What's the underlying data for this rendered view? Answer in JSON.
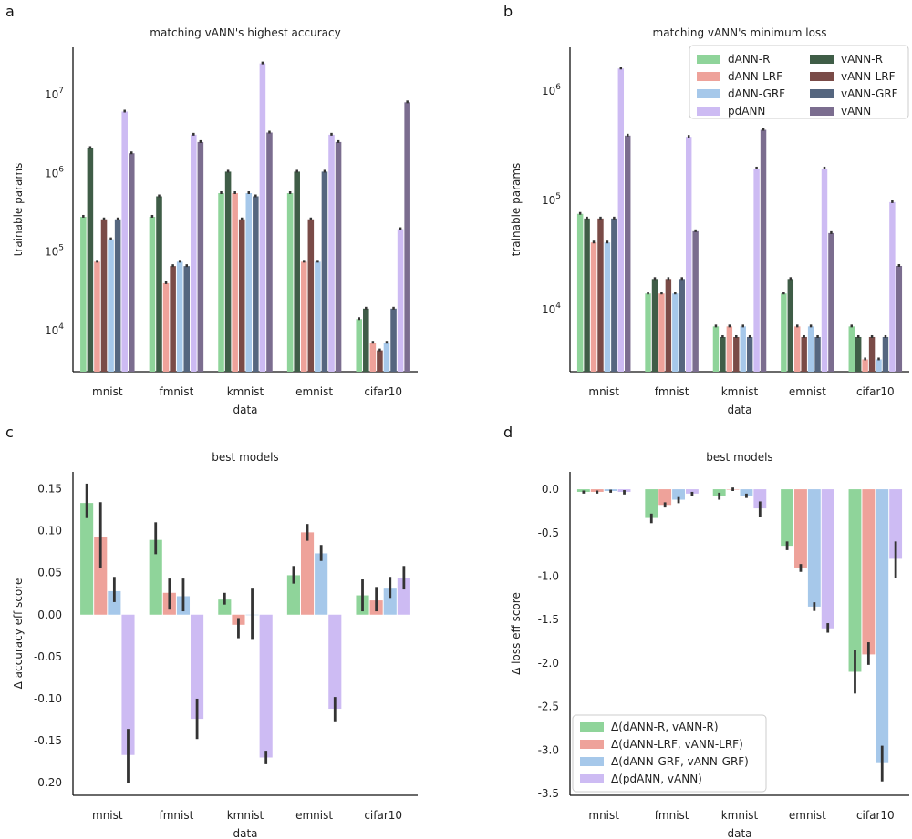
{
  "colors": {
    "dANN-R": "#8fd49a",
    "vANN-R": "#3f5d47",
    "dANN-LRF": "#eea29a",
    "vANN-LRF": "#7a4b47",
    "dANN-GRF": "#a6c8ea",
    "vANN-GRF": "#55667f",
    "pdANN": "#cdbbf3",
    "vANN": "#7b6d8f",
    "errbar": "#333333"
  },
  "chart_data": [
    {
      "id": "a",
      "panel_letter": "a",
      "type": "bar",
      "scale": "log",
      "title": "matching vANN's highest accuracy",
      "xlabel": "data",
      "ylabel": "trainable params",
      "ylim": [
        3000,
        40000000
      ],
      "ytick_labels": [
        {
          "value": 10000,
          "exp": "4"
        },
        {
          "value": 100000,
          "exp": "5"
        },
        {
          "value": 1000000,
          "exp": "6"
        },
        {
          "value": 10000000,
          "exp": "7"
        }
      ],
      "categories": [
        "mnist",
        "fmnist",
        "kmnist",
        "emnist",
        "cifar10"
      ],
      "series": [
        {
          "name": "dANN-R",
          "values": [
            280000,
            280000,
            560000,
            560000,
            14000
          ]
        },
        {
          "name": "vANN-R",
          "values": [
            2100000,
            510000,
            1050000,
            1050000,
            19000
          ]
        },
        {
          "name": "dANN-LRF",
          "values": [
            75000,
            40000,
            560000,
            75000,
            7000
          ]
        },
        {
          "name": "vANN-LRF",
          "values": [
            260000,
            66000,
            260000,
            260000,
            5600
          ]
        },
        {
          "name": "dANN-GRF",
          "values": [
            145000,
            75000,
            560000,
            75000,
            7000
          ]
        },
        {
          "name": "vANN-GRF",
          "values": [
            260000,
            66000,
            510000,
            1050000,
            19000
          ]
        },
        {
          "name": "pdANN",
          "values": [
            6100000,
            3100000,
            25000000,
            3100000,
            195000
          ]
        },
        {
          "name": "vANN",
          "values": [
            1800000,
            2500000,
            3300000,
            2500000,
            8000000
          ]
        }
      ]
    },
    {
      "id": "b",
      "panel_letter": "b",
      "type": "bar",
      "scale": "log",
      "title": "matching vANN's minimum loss",
      "xlabel": "data",
      "ylabel": "trainable params",
      "ylim": [
        2700,
        2500000
      ],
      "ytick_labels": [
        {
          "value": 10000,
          "exp": "4"
        },
        {
          "value": 100000,
          "exp": "5"
        },
        {
          "value": 1000000,
          "exp": "6"
        }
      ],
      "categories": [
        "mnist",
        "fmnist",
        "kmnist",
        "emnist",
        "cifar10"
      ],
      "legend": {
        "title": "",
        "placement": "top-right",
        "entries": [
          "dANN-R",
          "vANN-R",
          "dANN-LRF",
          "vANN-LRF",
          "dANN-GRF",
          "vANN-GRF",
          "pdANN",
          "vANN"
        ]
      },
      "series": [
        {
          "name": "dANN-R",
          "values": [
            75000,
            14000,
            7000,
            14000,
            7000
          ]
        },
        {
          "name": "vANN-R",
          "values": [
            68000,
            19000,
            5600,
            19000,
            5600
          ]
        },
        {
          "name": "dANN-LRF",
          "values": [
            41000,
            14000,
            7000,
            7000,
            3500
          ]
        },
        {
          "name": "vANN-LRF",
          "values": [
            68000,
            19000,
            5600,
            5600,
            5600
          ]
        },
        {
          "name": "dANN-GRF",
          "values": [
            41000,
            14000,
            7000,
            7000,
            3500
          ]
        },
        {
          "name": "vANN-GRF",
          "values": [
            68000,
            19000,
            5600,
            5600,
            5600
          ]
        },
        {
          "name": "pdANN",
          "values": [
            1600000,
            380000,
            195000,
            195000,
            96000
          ]
        },
        {
          "name": "vANN",
          "values": [
            390000,
            52000,
            440000,
            50000,
            25000
          ]
        }
      ]
    },
    {
      "id": "c",
      "panel_letter": "c",
      "type": "bar",
      "scale": "linear",
      "title": "best models",
      "xlabel": "data",
      "ylabel": "Δ accuracy eff score",
      "ylim": [
        -0.215,
        0.17
      ],
      "yticks": [
        0.15,
        0.1,
        0.05,
        0.0,
        -0.05,
        -0.1,
        -0.15,
        -0.2
      ],
      "ytick_labels": [
        "0.15",
        "0.10",
        "0.05",
        "0.00",
        "-0.05",
        "-0.10",
        "-0.15",
        "-0.20"
      ],
      "categories": [
        "mnist",
        "fmnist",
        "kmnist",
        "emnist",
        "cifar10"
      ],
      "series": [
        {
          "name": "Δ(dANN-R, vANN-R)",
          "color_key": "dANN-R",
          "values": [
            0.133,
            0.089,
            0.018,
            0.047,
            0.023
          ],
          "err": [
            [
              0.115,
              0.156
            ],
            [
              0.072,
              0.11
            ],
            [
              0.012,
              0.026
            ],
            [
              0.037,
              0.058
            ],
            [
              0.004,
              0.042
            ]
          ]
        },
        {
          "name": "Δ(dANN-LRF, vANN-LRF)",
          "color_key": "dANN-LRF",
          "values": [
            0.093,
            0.026,
            -0.012,
            0.098,
            0.017
          ],
          "err": [
            [
              0.055,
              0.134
            ],
            [
              0.006,
              0.043
            ],
            [
              -0.028,
              -0.004
            ],
            [
              0.088,
              0.108
            ],
            [
              0.004,
              0.033
            ]
          ]
        },
        {
          "name": "Δ(dANN-GRF, vANN-GRF)",
          "color_key": "dANN-GRF",
          "values": [
            0.028,
            0.022,
            0.0,
            0.073,
            0.031
          ],
          "err": [
            [
              0.015,
              0.045
            ],
            [
              0.004,
              0.043
            ],
            [
              -0.03,
              0.031
            ],
            [
              0.064,
              0.083
            ],
            [
              0.02,
              0.045
            ]
          ]
        },
        {
          "name": "Δ(pdANN, vANN)",
          "color_key": "pdANN",
          "values": [
            -0.167,
            -0.124,
            -0.17,
            -0.112,
            0.044
          ],
          "err": [
            [
              -0.2,
              -0.136
            ],
            [
              -0.148,
              -0.1
            ],
            [
              -0.178,
              -0.162
            ],
            [
              -0.128,
              -0.098
            ],
            [
              0.03,
              0.058
            ]
          ]
        }
      ]
    },
    {
      "id": "d",
      "panel_letter": "d",
      "type": "bar",
      "scale": "linear",
      "title": "best models",
      "xlabel": "data",
      "ylabel": "Δ loss eff score",
      "ylim": [
        -3.52,
        0.2
      ],
      "yticks": [
        0.0,
        -0.5,
        -1.0,
        -1.5,
        -2.0,
        -2.5,
        -3.0,
        -3.5
      ],
      "ytick_labels": [
        "0.0",
        "-0.5",
        "-1.0",
        "-1.5",
        "-2.0",
        "-2.5",
        "-3.0",
        "-3.5"
      ],
      "categories": [
        "mnist",
        "fmnist",
        "kmnist",
        "emnist",
        "cifar10"
      ],
      "legend": {
        "placement": "lower-left",
        "entries": [
          "Δ(dANN-R, vANN-R)",
          "Δ(dANN-LRF, vANN-LRF)",
          "Δ(dANN-GRF, vANN-GRF)",
          "Δ(pdANN, vANN)"
        ]
      },
      "series": [
        {
          "name": "Δ(dANN-R, vANN-R)",
          "color_key": "dANN-R",
          "values": [
            -0.03,
            -0.33,
            -0.08,
            -0.65,
            -2.1
          ],
          "err": [
            [
              -0.05,
              -0.015
            ],
            [
              -0.39,
              -0.28
            ],
            [
              -0.12,
              -0.04
            ],
            [
              -0.7,
              -0.6
            ],
            [
              -2.35,
              -1.85
            ]
          ]
        },
        {
          "name": "Δ(dANN-LRF, vANN-LRF)",
          "color_key": "dANN-LRF",
          "values": [
            -0.03,
            -0.18,
            0.0,
            -0.9,
            -1.9
          ],
          "err": [
            [
              -0.05,
              -0.015
            ],
            [
              -0.21,
              -0.15
            ],
            [
              -0.02,
              0.02
            ],
            [
              -0.95,
              -0.86
            ],
            [
              -2.02,
              -1.76
            ]
          ]
        },
        {
          "name": "Δ(dANN-GRF, vANN-GRF)",
          "color_key": "dANN-GRF",
          "values": [
            -0.02,
            -0.12,
            -0.08,
            -1.35,
            -3.15
          ],
          "err": [
            [
              -0.04,
              -0.005
            ],
            [
              -0.16,
              -0.09
            ],
            [
              -0.1,
              -0.05
            ],
            [
              -1.4,
              -1.3
            ],
            [
              -3.36,
              -2.95
            ]
          ]
        },
        {
          "name": "Δ(pdANN, vANN)",
          "color_key": "pdANN",
          "values": [
            -0.03,
            -0.05,
            -0.22,
            -1.6,
            -0.8
          ],
          "err": [
            [
              -0.06,
              -0.01
            ],
            [
              -0.08,
              -0.03
            ],
            [
              -0.32,
              -0.14
            ],
            [
              -1.65,
              -1.54
            ],
            [
              -1.02,
              -0.6
            ]
          ]
        }
      ]
    }
  ]
}
